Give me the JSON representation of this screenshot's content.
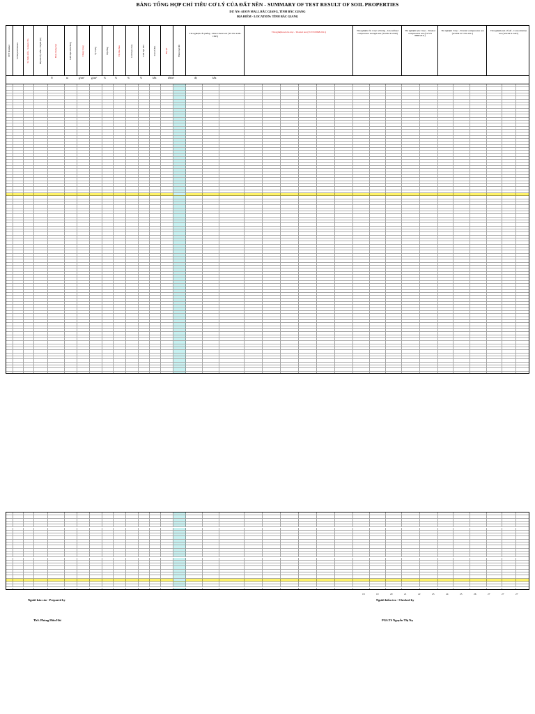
{
  "doc": {
    "title": "BẢNG TỔNG HỢP CHỈ TIÊU CƠ LÝ CỦA ĐẤT NỀN - SUMMARY OF TEST RESULT OF SOIL PROPERTIES",
    "project": "DỰ ÁN: AEON MALL BẮC GIANG, TỈNH BẮC GIANG",
    "location": "ĐỊA ĐIỂM - LOCATION: TỈNH BẮC GIANG"
  },
  "header": {
    "col_1": "STT Number",
    "col_2": "Số hiệu hố khoan",
    "col_3": "Số hiệu mẫu - Sample No",
    "col_4": "Độ sâu lấy mẫu - Depth (m)",
    "col_5": "Hàm lượng hạt",
    "col_6": "Giới hạn Atterberg",
    "col_7": "Dung trọng",
    "col_8": "Tỷ trọng",
    "col_9": "Độ rỗng",
    "col_10": "Độ bão hòa",
    "col_11": "Giới hạn chảy",
    "col_12": "Giới hạn dẻo",
    "col_13": "Chỉ số dẻo",
    "col_14": "Độ sệt",
    "col_15": "Phân loại đất",
    "group_a": "Thí nghiệm cắt phẳng - Direct shear test (TCVN 4199-1995)",
    "group_b": "Thí nghiệm nén ba trục - Triaxial test (TCVN 8868:2011)",
    "group_c": "Thí nghiệm cắt 1 trục nở hông - Unconfined compressive strength test (ASTM D 2166)",
    "group_d": "Thí nghiệm nén 3 trục - Triaxial compression test (TCVN 8868:2011)",
    "group_e": "Thí nghiệm 3 trục - Triaxial compression test (ASTM D 7181-2011)",
    "group_f": "Thí nghiệm nén cố kết - Consolidation test (ASTM D 2435)"
  },
  "units": [
    "N",
    "m",
    "g/cm³",
    "g/cm³",
    "%",
    "%",
    "%",
    "%",
    "kPa",
    "kN/m²",
    "độ",
    "kPa"
  ],
  "signatures": {
    "prepared_label": "Người báo cáo - Prepared by",
    "checked_label": "Người kiểm tra - Checked by",
    "prepared_name": "ThS. Phùng Hữu Hải",
    "checked_name": "PGS.TS Nguyễn Thị Nụ"
  },
  "col_numbers": [
    "18",
    "19",
    "20",
    "21",
    "22",
    "23",
    "24",
    "25",
    "26",
    "27",
    "27",
    "27"
  ]
}
